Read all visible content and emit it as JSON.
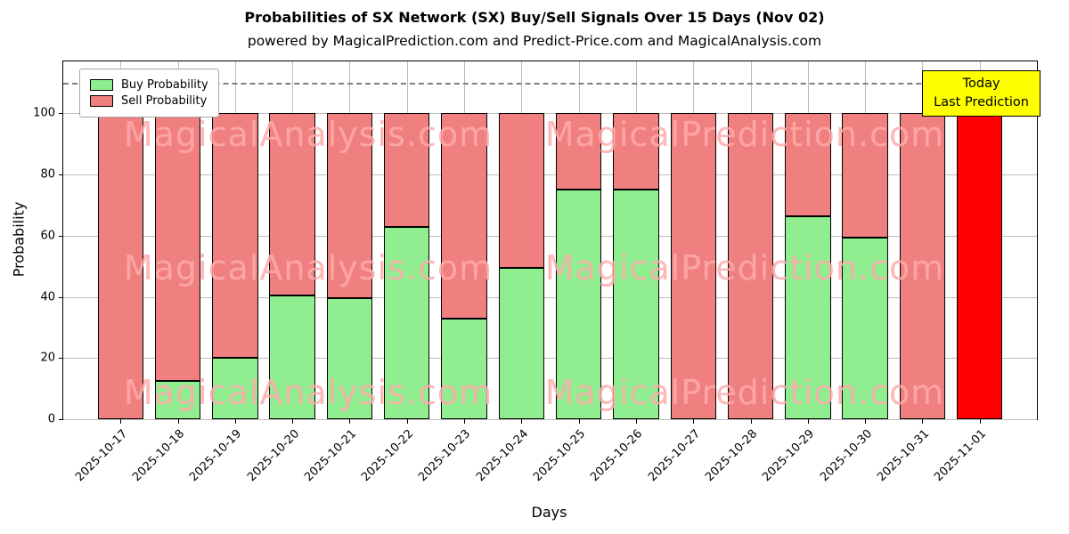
{
  "chart_data": {
    "type": "bar",
    "stacked": true,
    "title": "Probabilities of SX Network (SX) Buy/Sell Signals Over 15 Days (Nov 02)",
    "subtitle": "powered by MagicalPrediction.com and Predict-Price.com and MagicalAnalysis.com",
    "xlabel": "Days",
    "ylabel": "Probability",
    "ylim": [
      0,
      117
    ],
    "yticks": [
      0,
      20,
      40,
      60,
      80,
      100
    ],
    "dashed_line_y": 110,
    "grid": true,
    "legend_position": "upper-left",
    "categories": [
      "2025-10-17",
      "2025-10-18",
      "2025-10-19",
      "2025-10-20",
      "2025-10-21",
      "2025-10-22",
      "2025-10-23",
      "2025-10-24",
      "2025-10-25",
      "2025-10-26",
      "2025-10-27",
      "2025-10-28",
      "2025-10-29",
      "2025-10-30",
      "2025-10-31",
      "2025-11-01"
    ],
    "series": [
      {
        "name": "Buy Probability",
        "color": "#90ee90",
        "values": [
          0,
          12.5,
          20,
          40.5,
          39.5,
          63,
          33,
          49.5,
          75,
          75,
          0,
          0,
          66.5,
          59.5,
          0,
          0
        ]
      },
      {
        "name": "Sell Probability",
        "color": "#f08080",
        "values": [
          100,
          87.5,
          80,
          59.5,
          60.5,
          37,
          67,
          50.5,
          25,
          25,
          100,
          100,
          33.5,
          40.5,
          100,
          100
        ]
      }
    ],
    "today_bar": {
      "index": 15,
      "color": "#ff0000"
    },
    "annotation_box": {
      "lines": [
        "Today",
        "Last Prediction"
      ],
      "bg": "#ffff00"
    },
    "watermarks": [
      "MagicalAnalysis.com",
      "MagicalPrediction.com"
    ]
  }
}
